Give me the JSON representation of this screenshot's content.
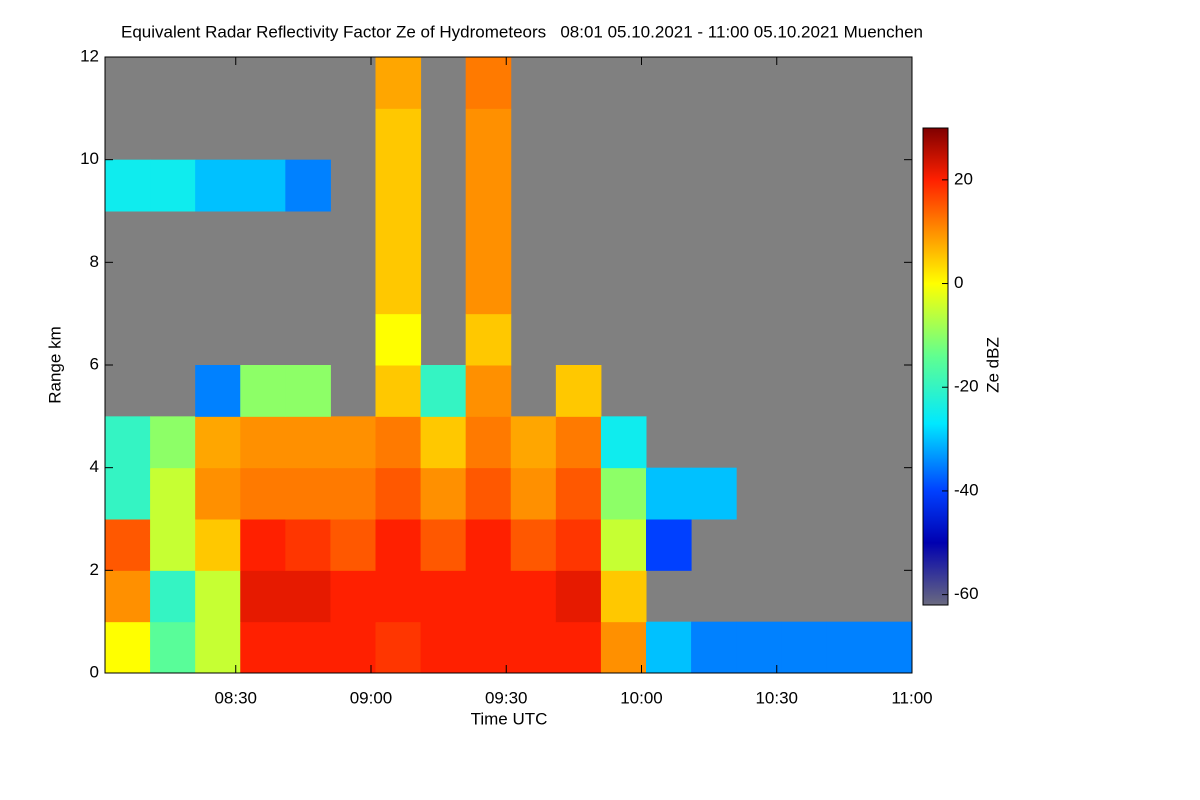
{
  "chart_data": {
    "type": "heatmap",
    "title": "Equivalent Radar Reflectivity Factor Ze of Hydrometeors   08:01 05.10.2021 - 11:00 05.10.2021 Muenchen",
    "xlabel": "Time UTC",
    "ylabel": "Range km",
    "colorbar_label": "Ze dBZ",
    "background": "#808080",
    "x": [
      486,
      496,
      506,
      516,
      526,
      536,
      546,
      556,
      566,
      576,
      586,
      596,
      606,
      616,
      626,
      636,
      646,
      656
    ],
    "y": [
      0.5,
      1.5,
      2.5,
      3.5,
      4.5,
      5.5,
      6.5,
      7.5,
      8.5,
      9.5,
      10.5,
      11.5
    ],
    "z": [
      [
        0,
        -15,
        -5,
        20,
        20,
        20,
        18,
        20,
        20,
        20,
        20,
        10,
        -30,
        -35,
        -35,
        -35,
        -35,
        -35
      ],
      [
        10,
        -20,
        -5,
        22,
        22,
        20,
        20,
        20,
        20,
        20,
        22,
        5,
        null,
        null,
        null,
        null,
        null,
        null
      ],
      [
        15,
        -5,
        5,
        20,
        18,
        15,
        20,
        15,
        20,
        15,
        18,
        -5,
        -40,
        null,
        null,
        null,
        null,
        null
      ],
      [
        -20,
        -5,
        10,
        12,
        12,
        12,
        15,
        10,
        15,
        10,
        15,
        -10,
        -30,
        -30,
        null,
        null,
        null,
        null
      ],
      [
        -20,
        -10,
        8,
        10,
        10,
        10,
        12,
        5,
        12,
        8,
        12,
        -25,
        null,
        null,
        null,
        null,
        null,
        null
      ],
      [
        null,
        null,
        -35,
        -10,
        -10,
        null,
        5,
        -20,
        10,
        null,
        5,
        null,
        null,
        null,
        null,
        null,
        null,
        null
      ],
      [
        null,
        null,
        null,
        null,
        null,
        null,
        0,
        null,
        5,
        null,
        null,
        null,
        null,
        null,
        null,
        null,
        null,
        null
      ],
      [
        null,
        null,
        null,
        null,
        null,
        null,
        5,
        null,
        10,
        null,
        null,
        null,
        null,
        null,
        null,
        null,
        null,
        null
      ],
      [
        null,
        null,
        null,
        null,
        null,
        null,
        5,
        null,
        10,
        null,
        null,
        null,
        null,
        null,
        null,
        null,
        null,
        null
      ],
      [
        -25,
        -25,
        -30,
        -30,
        -35,
        null,
        5,
        null,
        10,
        null,
        null,
        null,
        null,
        null,
        null,
        null,
        null,
        null
      ],
      [
        null,
        null,
        null,
        null,
        null,
        null,
        5,
        null,
        10,
        null,
        null,
        null,
        null,
        null,
        null,
        null,
        null,
        null
      ],
      [
        null,
        null,
        null,
        null,
        null,
        null,
        8,
        null,
        12,
        null,
        null,
        null,
        null,
        null,
        null,
        null,
        null,
        null
      ]
    ],
    "xlim": [
      481,
      660
    ],
    "xticks": [
      {
        "value": 510,
        "label": "08:30"
      },
      {
        "value": 540,
        "label": "09:00"
      },
      {
        "value": 570,
        "label": "09:30"
      },
      {
        "value": 600,
        "label": "10:00"
      },
      {
        "value": 630,
        "label": "10:30"
      },
      {
        "value": 660,
        "label": "11:00"
      }
    ],
    "ylim": [
      0,
      12
    ],
    "yticks": [
      0,
      2,
      4,
      6,
      8,
      10,
      12
    ],
    "zlim": [
      -62,
      30
    ],
    "zticks": [
      -60,
      -40,
      -20,
      0,
      20
    ],
    "colorscale": [
      [
        -62,
        "#6a6a80"
      ],
      [
        -50,
        "#0000b0"
      ],
      [
        -40,
        "#0040ff"
      ],
      [
        -27,
        "#00e8ff"
      ],
      [
        -14,
        "#60ff90"
      ],
      [
        0,
        "#ffff00"
      ],
      [
        10,
        "#ff9000"
      ],
      [
        20,
        "#ff2000"
      ],
      [
        30,
        "#800000"
      ]
    ]
  }
}
